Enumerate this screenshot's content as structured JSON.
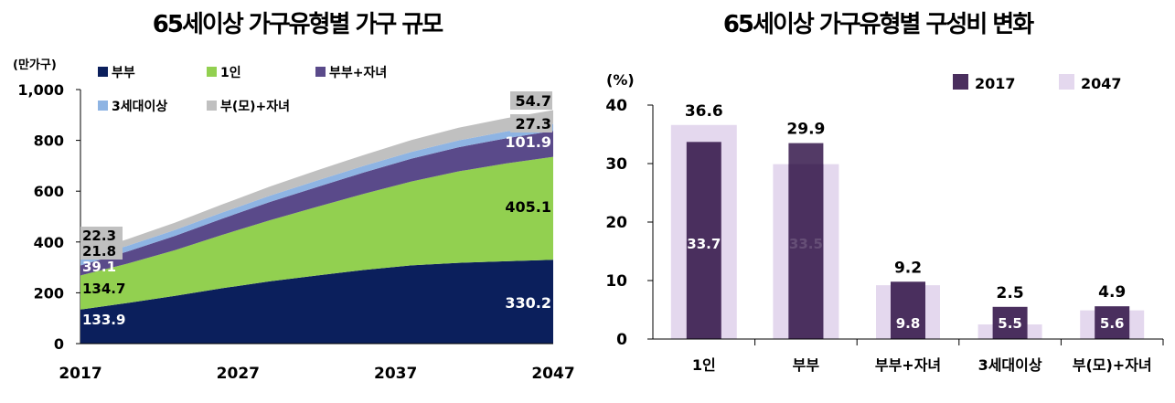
{
  "colors": {
    "couple": "#0b1f5c",
    "single": "#92d050",
    "couple_child": "#5a4a8a",
    "three_gen": "#8eb4e3",
    "parent_child": "#c0c0c0",
    "bar2017": "#4a2f5e",
    "bar2047": "#e4d8ee",
    "label_box": "#c0c0c0"
  },
  "chart_data": [
    {
      "type": "area",
      "stacked": true,
      "title": "65세이상 가구유형별 가구 규모",
      "ylabel": "(만가구)",
      "ylim": [
        0,
        1000
      ],
      "yticks": [
        0,
        200,
        400,
        600,
        800,
        1000
      ],
      "ytick_labels": [
        "0",
        "200",
        "400",
        "600",
        "800",
        "1,000"
      ],
      "xlim": [
        2017,
        2047
      ],
      "xtick_labels": [
        "2017",
        "2027",
        "2037",
        "2047"
      ],
      "x": [
        2017,
        2020,
        2023,
        2026,
        2029,
        2032,
        2035,
        2038,
        2041,
        2044,
        2047
      ],
      "legend_position": "top-left",
      "series": [
        {
          "name": "부부",
          "key": "couple",
          "values": [
            133.9,
            160,
            188,
            218,
            245,
            268,
            290,
            308,
            318,
            324,
            330.2
          ]
        },
        {
          "name": "1인",
          "key": "single",
          "values": [
            134.7,
            155,
            180,
            210,
            240,
            270,
            300,
            330,
            360,
            385,
            405.1
          ]
        },
        {
          "name": "부부+자녀",
          "key": "couple_child",
          "values": [
            39.1,
            48,
            56,
            64,
            72,
            78,
            84,
            90,
            95,
            99,
            101.9
          ]
        },
        {
          "name": "3세대이상",
          "key": "three_gen",
          "values": [
            21.8,
            22.5,
            23.2,
            24,
            24.8,
            25.5,
            26,
            26.4,
            26.8,
            27,
            27.3
          ]
        },
        {
          "name": "부(모)+자녀",
          "key": "parent_child",
          "values": [
            22.3,
            26,
            29,
            32,
            36,
            40,
            43,
            47,
            50,
            52,
            54.7
          ]
        }
      ],
      "start_labels": [
        "133.9",
        "134.7",
        "39.1",
        "21.8",
        "22.3"
      ],
      "end_labels": [
        "330.2",
        "405.1",
        "101.9",
        "27.3",
        "54.7"
      ]
    },
    {
      "type": "bar",
      "title": "65세이상 가구유형별 구성비 변화",
      "ylabel": "(%)",
      "ylim": [
        0,
        40
      ],
      "yticks": [
        0,
        10,
        20,
        30,
        40
      ],
      "categories": [
        "1인",
        "부부",
        "부부+자녀",
        "3세대이상",
        "부(모)+자녀"
      ],
      "legend_position": "top-right",
      "series": [
        {
          "name": "2017",
          "values": [
            33.7,
            33.5,
            9.8,
            5.5,
            5.6
          ]
        },
        {
          "name": "2047",
          "values": [
            36.6,
            29.9,
            9.2,
            2.5,
            4.9
          ]
        }
      ],
      "labels_2017": [
        "33.7",
        "33.5",
        "9.8",
        "5.5",
        "5.6"
      ],
      "labels_2047": [
        "36.6",
        "29.9",
        "9.2",
        "2.5",
        "4.9"
      ]
    }
  ]
}
